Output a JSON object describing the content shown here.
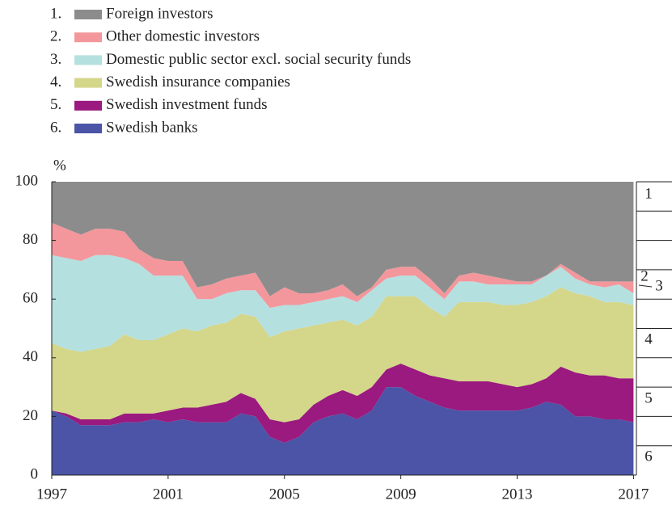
{
  "chart_data": {
    "type": "stacked_area",
    "y_unit": "%",
    "x": [
      1997,
      1997.5,
      1998,
      1998.5,
      1999,
      1999.5,
      2000,
      2000.5,
      2001,
      2001.5,
      2002,
      2002.5,
      2003,
      2003.5,
      2004,
      2004.5,
      2005,
      2005.5,
      2006,
      2006.5,
      2007,
      2007.5,
      2008,
      2008.5,
      2009,
      2009.5,
      2010,
      2010.5,
      2011,
      2011.5,
      2012,
      2012.5,
      2013,
      2013.5,
      2014,
      2014.5,
      2015,
      2015.5,
      2016,
      2016.5,
      2017
    ],
    "series": [
      {
        "number": "1.",
        "name": "Foreign investors",
        "color": "#8c8c8c",
        "values": [
          14,
          16,
          18,
          16,
          16,
          17,
          23,
          26,
          27,
          27,
          36,
          35,
          33,
          32,
          31,
          39,
          36,
          38,
          38,
          37,
          35,
          39,
          36,
          30,
          29,
          29,
          33,
          38,
          32,
          31,
          32,
          33,
          34,
          34,
          32,
          28,
          31,
          34,
          34,
          34,
          34
        ]
      },
      {
        "number": "2.",
        "name": "Other domestic investors",
        "color": "#f3979c",
        "values": [
          11,
          10,
          9,
          9,
          9,
          9,
          5,
          6,
          5,
          5,
          4,
          5,
          5,
          5,
          6,
          4,
          6,
          4,
          3,
          3,
          4,
          2,
          1,
          3,
          3,
          3,
          3,
          2,
          2,
          3,
          3,
          2,
          1,
          1,
          0,
          1,
          2,
          1,
          2,
          1,
          4
        ]
      },
      {
        "number": "3.",
        "name": "Domestic public sector excl. social security funds",
        "color": "#b5e0e0",
        "values": [
          30,
          31,
          31,
          32,
          31,
          26,
          26,
          22,
          20,
          18,
          11,
          9,
          10,
          8,
          9,
          10,
          9,
          8,
          8,
          8,
          8,
          8,
          9,
          6,
          7,
          7,
          7,
          6,
          7,
          7,
          6,
          7,
          7,
          6,
          7,
          7,
          5,
          4,
          5,
          6,
          4
        ]
      },
      {
        "number": "4.",
        "name": "Swedish insurance companies",
        "color": "#d4d68a",
        "values": [
          23,
          22,
          23,
          24,
          25,
          27,
          25,
          25,
          26,
          27,
          26,
          27,
          27,
          27,
          28,
          28,
          31,
          31,
          27,
          25,
          24,
          24,
          24,
          25,
          23,
          25,
          23,
          21,
          27,
          27,
          27,
          27,
          28,
          28,
          28,
          27,
          27,
          27,
          25,
          26,
          25
        ]
      },
      {
        "number": "5.",
        "name": "Swedish investment funds",
        "color": "#9b1a7f",
        "values": [
          0,
          1,
          2,
          2,
          2,
          3,
          3,
          2,
          4,
          4,
          5,
          6,
          7,
          7,
          6,
          6,
          7,
          6,
          6,
          7,
          8,
          8,
          8,
          6,
          8,
          9,
          9,
          10,
          10,
          10,
          10,
          9,
          8,
          8,
          8,
          13,
          15,
          14,
          15,
          14,
          15
        ]
      },
      {
        "number": "6.",
        "name": "Swedish banks",
        "color": "#4b54a6",
        "values": [
          22,
          20,
          17,
          17,
          17,
          18,
          18,
          19,
          18,
          19,
          18,
          18,
          18,
          21,
          20,
          13,
          11,
          13,
          18,
          20,
          21,
          19,
          22,
          30,
          30,
          27,
          25,
          23,
          22,
          22,
          22,
          22,
          22,
          23,
          25,
          24,
          20,
          20,
          19,
          19,
          18
        ]
      }
    ],
    "area_labels": [
      "1",
      "2",
      "3",
      "4",
      "5",
      "6"
    ],
    "xlim": [
      1997,
      2017.1
    ],
    "xticks": [
      1997,
      2001,
      2005,
      2009,
      2013,
      2017
    ],
    "ylim": [
      0,
      100
    ],
    "yticks": [
      0,
      20,
      40,
      60,
      80,
      100
    ],
    "right_ticks": [
      10,
      20,
      30,
      40,
      50,
      60,
      70,
      80,
      90
    ]
  }
}
